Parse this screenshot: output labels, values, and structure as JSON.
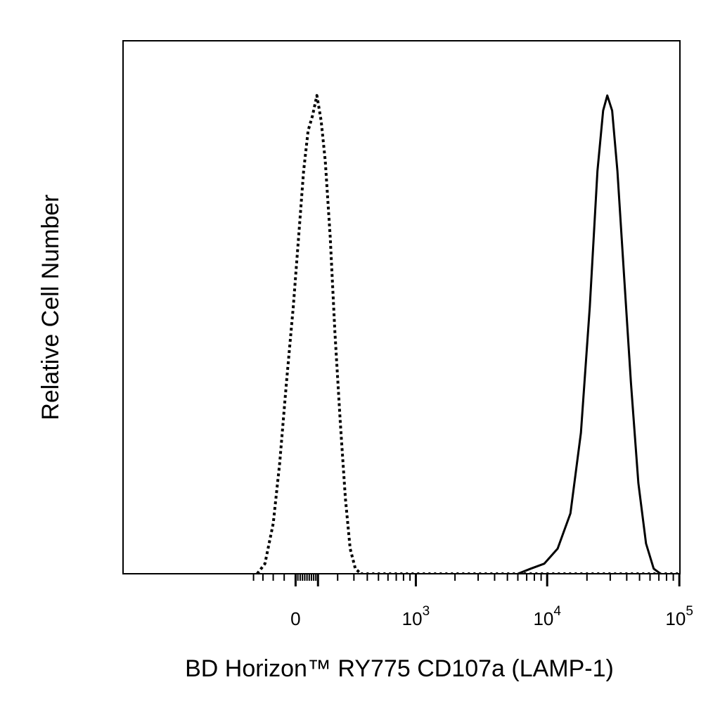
{
  "chart_data": {
    "type": "line",
    "title": "",
    "xlabel": "BD Horizon™ RY775 CD107a (LAMP-1)",
    "ylabel": "Relative Cell Number",
    "x_scale": "biexponential",
    "xlim": [
      -250,
      200000
    ],
    "ylim": [
      0,
      100
    ],
    "grid": false,
    "legend": "none",
    "x_ticks": [
      {
        "value": 0,
        "base": "0",
        "exp": ""
      },
      {
        "value": 1000,
        "base": "10",
        "exp": "3"
      },
      {
        "value": 10000,
        "base": "10",
        "exp": "4"
      },
      {
        "value": 100000,
        "base": "10",
        "exp": "5"
      }
    ],
    "series": [
      {
        "style": "dotted",
        "color": "#000000",
        "x": [
          -180,
          -140,
          -100,
          -70,
          -40,
          -10,
          15,
          35,
          55,
          75,
          95,
          115,
          135,
          160,
          185,
          215,
          245,
          275,
          310,
          350
        ],
        "y": [
          0,
          2,
          10,
          22,
          38,
          53,
          68,
          80,
          88,
          91,
          95,
          90,
          82,
          67,
          48,
          30,
          15,
          5,
          1,
          0
        ]
      },
      {
        "style": "solid",
        "color": "#000000",
        "x": [
          6000,
          7500,
          9500,
          12000,
          15000,
          18000,
          21000,
          24000,
          26500,
          28500,
          31000,
          34000,
          38000,
          43000,
          49000,
          56000,
          64000,
          72000
        ],
        "y": [
          0,
          1,
          2,
          5,
          12,
          28,
          53,
          80,
          92,
          95,
          92,
          80,
          60,
          38,
          18,
          6,
          1,
          0
        ]
      }
    ]
  }
}
